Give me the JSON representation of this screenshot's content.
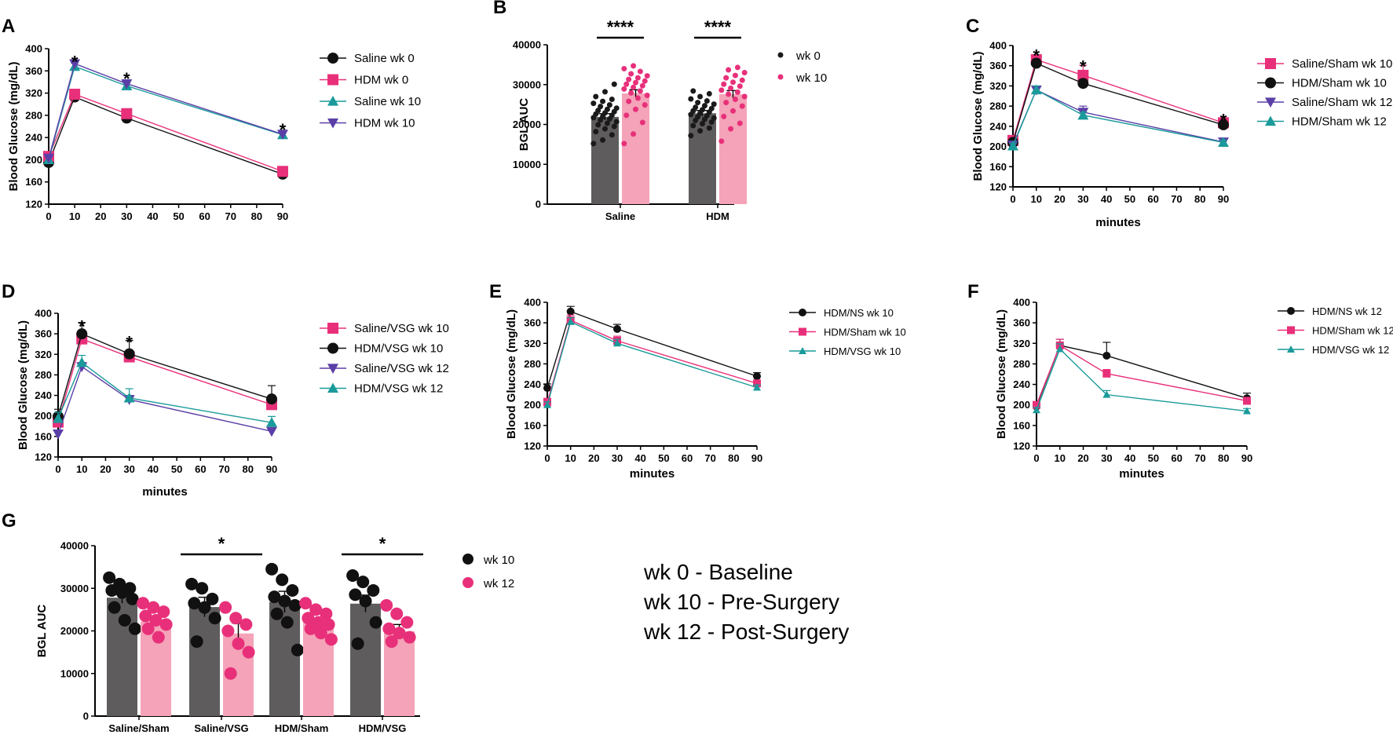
{
  "colors": {
    "black": "#111111",
    "pink": "#e8307a",
    "pinkBar": "#f4a3b8",
    "grayBar": "#5f5c5e",
    "teal": "#1a9a9a",
    "purple": "#5b3fa8",
    "blackDot": "#1a1a1a"
  },
  "notes": [
    "wk 0 - Baseline",
    "wk 10 - Pre-Surgery",
    "wk 12 - Post-Surgery"
  ],
  "chart_data": [
    {
      "id": "A",
      "panel_label": "A",
      "type": "line",
      "x": [
        0,
        10,
        30,
        90
      ],
      "xlim": [
        0,
        90
      ],
      "ylim": [
        120,
        400
      ],
      "xticks": [
        "0",
        "10",
        "20",
        "30",
        "40",
        "50",
        "60",
        "70",
        "80",
        "90"
      ],
      "yticks": [
        "120",
        "160",
        "200",
        "240",
        "280",
        "320",
        "360",
        "400"
      ],
      "ylabel": "Blood Glucose (mg/dL)",
      "xlabel": "",
      "stars": [
        {
          "x": 10,
          "y": 385,
          "label": "*"
        },
        {
          "x": 30,
          "y": 355,
          "label": "*"
        },
        {
          "x": 90,
          "y": 263,
          "label": "*"
        }
      ],
      "series": [
        {
          "name": "Saline wk 0",
          "color": "#111111",
          "marker": "circle",
          "values": [
            195,
            313,
            275,
            174
          ],
          "errors": [
            4,
            4,
            3,
            3
          ]
        },
        {
          "name": "HDM wk 0",
          "color": "#e8307a",
          "marker": "square",
          "values": [
            206,
            318,
            283,
            179
          ],
          "errors": [
            5,
            5,
            4,
            3
          ]
        },
        {
          "name": "Saline wk 10",
          "color": "#1a9a9a",
          "marker": "triangle-up",
          "values": [
            200,
            368,
            333,
            245
          ],
          "errors": [
            5,
            6,
            5,
            4
          ]
        },
        {
          "name": "HDM wk 10",
          "color": "#5b3fa8",
          "marker": "triangle-down",
          "values": [
            203,
            373,
            337,
            246
          ],
          "errors": [
            5,
            5,
            5,
            4
          ]
        }
      ]
    },
    {
      "id": "B",
      "panel_label": "B",
      "type": "bar",
      "categories": [
        "Saline",
        "HDM"
      ],
      "ylim": [
        0,
        40000
      ],
      "yticks": [
        "0",
        "10000",
        "20000",
        "30000",
        "40000"
      ],
      "ylabel": "BGL AUC",
      "sig": [
        {
          "category": "Saline",
          "label": "****"
        },
        {
          "category": "HDM",
          "label": "****"
        }
      ],
      "series": [
        {
          "name": "wk 0",
          "color": "#5f5c5e",
          "dot_color": "#1a1a1a",
          "values": [
            21900,
            22800
          ],
          "errors": [
            800,
            700
          ],
          "points": [
            [
              15200,
              16100,
              17400,
              18200,
              18900,
              19500,
              19900,
              20300,
              20700,
              21100,
              21400,
              21700,
              22000,
              22300,
              22600,
              22900,
              23200,
              23500,
              23800,
              24100,
              24500,
              24900,
              25300,
              25800,
              26300,
              27000,
              28200,
              30100
            ],
            [
              17200,
              18400,
              19100,
              19700,
              20200,
              20600,
              21000,
              21300,
              21600,
              21900,
              22200,
              22500,
              22800,
              23100,
              23400,
              23700,
              24000,
              24300,
              24700,
              25100,
              25500,
              25900,
              26400,
              27000,
              27700,
              28400
            ]
          ]
        },
        {
          "name": "wk 10",
          "color": "#f4a3b8",
          "dot_color": "#e8307a",
          "values": [
            27800,
            27600
          ],
          "errors": [
            900,
            900
          ],
          "points": [
            [
              15200,
              17600,
              20500,
              22300,
              23800,
              24900,
              25800,
              26600,
              27300,
              27900,
              28400,
              28900,
              29300,
              29700,
              30100,
              30500,
              30900,
              31300,
              31700,
              32200,
              32700,
              33300,
              34000,
              34700
            ],
            [
              15800,
              18900,
              20300,
              22000,
              23400,
              24600,
              25500,
              26300,
              27000,
              27600,
              28100,
              28600,
              29100,
              29600,
              30100,
              30600,
              31100,
              31700,
              32300,
              33000,
              33700,
              34300
            ]
          ]
        }
      ]
    },
    {
      "id": "C",
      "panel_label": "C",
      "type": "line",
      "x": [
        0,
        10,
        30,
        90
      ],
      "xlim": [
        0,
        90
      ],
      "ylim": [
        120,
        400
      ],
      "xticks": [
        "0",
        "10",
        "20",
        "30",
        "40",
        "50",
        "60",
        "70",
        "80",
        "90"
      ],
      "yticks": [
        "120",
        "160",
        "200",
        "240",
        "280",
        "320",
        "360",
        "400"
      ],
      "ylabel": "Blood Glucose (mg/dL)",
      "xlabel": "minutes",
      "stars": [
        {
          "x": 10,
          "y": 390,
          "label": "*"
        },
        {
          "x": 30,
          "y": 368,
          "label": "*"
        },
        {
          "x": 90,
          "y": 262,
          "label": "*"
        }
      ],
      "series": [
        {
          "name": "Saline/Sham wk 10",
          "color": "#e8307a",
          "marker": "square",
          "values": [
            212,
            372,
            341,
            247
          ],
          "errors": [
            6,
            10,
            20,
            6
          ]
        },
        {
          "name": "HDM/Sham wk 10",
          "color": "#111111",
          "marker": "circle",
          "values": [
            208,
            365,
            325,
            243
          ],
          "errors": [
            6,
            8,
            8,
            5
          ]
        },
        {
          "name": "Saline/Sham wk 12",
          "color": "#5b3fa8",
          "marker": "triangle-down",
          "values": [
            203,
            312,
            268,
            209
          ],
          "errors": [
            5,
            8,
            12,
            6
          ]
        },
        {
          "name": "HDM/Sham wk 12",
          "color": "#1a9a9a",
          "marker": "triangle-up",
          "values": [
            201,
            312,
            262,
            208
          ],
          "errors": [
            5,
            8,
            6,
            5
          ]
        }
      ]
    },
    {
      "id": "D",
      "panel_label": "D",
      "type": "line",
      "x": [
        0,
        10,
        30,
        90
      ],
      "xlim": [
        0,
        90
      ],
      "ylim": [
        120,
        400
      ],
      "xticks": [
        "0",
        "10",
        "20",
        "30",
        "40",
        "50",
        "60",
        "70",
        "80",
        "90"
      ],
      "yticks": [
        "120",
        "160",
        "200",
        "240",
        "280",
        "320",
        "360",
        "400"
      ],
      "ylabel": "Blood Glucose (mg/dL)",
      "xlabel": "minutes",
      "stars": [
        {
          "x": 10,
          "y": 384,
          "label": "*"
        },
        {
          "x": 30,
          "y": 353,
          "label": "*"
        }
      ],
      "series": [
        {
          "name": "Saline/VSG wk 10",
          "color": "#e8307a",
          "marker": "square",
          "values": [
            188,
            350,
            315,
            222
          ],
          "errors": [
            6,
            10,
            10,
            8
          ]
        },
        {
          "name": "HDM/VSG wk 10",
          "color": "#111111",
          "marker": "circle",
          "values": [
            199,
            360,
            321,
            233
          ],
          "errors": [
            14,
            22,
            26,
            26
          ]
        },
        {
          "name": "Saline/VSG wk 12",
          "color": "#5b3fa8",
          "marker": "triangle-down",
          "values": [
            165,
            296,
            232,
            170
          ],
          "errors": [
            6,
            8,
            8,
            6
          ]
        },
        {
          "name": "HDM/VSG wk 12",
          "color": "#1a9a9a",
          "marker": "triangle-up",
          "values": [
            195,
            304,
            235,
            187
          ],
          "errors": [
            12,
            14,
            18,
            12
          ]
        }
      ]
    },
    {
      "id": "E",
      "panel_label": "E",
      "type": "line",
      "x": [
        0,
        10,
        30,
        90
      ],
      "xlim": [
        0,
        90
      ],
      "ylim": [
        120,
        400
      ],
      "xticks": [
        "0",
        "10",
        "20",
        "30",
        "40",
        "50",
        "60",
        "70",
        "80",
        "90"
      ],
      "yticks": [
        "120",
        "160",
        "200",
        "240",
        "280",
        "320",
        "360",
        "400"
      ],
      "ylabel": "Blood Glucose (mg/dL)",
      "xlabel": "minutes",
      "stars": [],
      "series": [
        {
          "name": "HDM/NS wk 10",
          "color": "#111111",
          "marker": "circle",
          "values": [
            233,
            382,
            348,
            256
          ],
          "errors": [
            8,
            10,
            9,
            7
          ]
        },
        {
          "name": "HDM/Sham wk 10",
          "color": "#e8307a",
          "marker": "square",
          "values": [
            205,
            365,
            325,
            242
          ],
          "errors": [
            8,
            10,
            9,
            6
          ]
        },
        {
          "name": "HDM/VSG wk 10",
          "color": "#1a9a9a",
          "marker": "triangle-up",
          "values": [
            200,
            362,
            320,
            234
          ],
          "errors": [
            6,
            8,
            8,
            5
          ]
        }
      ]
    },
    {
      "id": "F",
      "panel_label": "F",
      "type": "line",
      "x": [
        0,
        10,
        30,
        90
      ],
      "xlim": [
        0,
        90
      ],
      "ylim": [
        120,
        400
      ],
      "xticks": [
        "0",
        "10",
        "20",
        "30",
        "40",
        "50",
        "60",
        "70",
        "80",
        "90"
      ],
      "yticks": [
        "120",
        "160",
        "200",
        "240",
        "280",
        "320",
        "360",
        "400"
      ],
      "ylabel": "Blood Glucose (mg/dL)",
      "xlabel": "minutes",
      "stars": [],
      "series": [
        {
          "name": "HDM/NS wk 12",
          "color": "#111111",
          "marker": "circle",
          "values": [
            197,
            316,
            296,
            213
          ],
          "errors": [
            6,
            12,
            26,
            10
          ]
        },
        {
          "name": "HDM/Sham wk 12",
          "color": "#e8307a",
          "marker": "square",
          "values": [
            200,
            316,
            261,
            208
          ],
          "errors": [
            6,
            12,
            8,
            6
          ]
        },
        {
          "name": "HDM/VSG wk 12",
          "color": "#1a9a9a",
          "marker": "triangle-up",
          "values": [
            190,
            309,
            220,
            188
          ],
          "errors": [
            5,
            10,
            8,
            5
          ]
        }
      ]
    },
    {
      "id": "G",
      "panel_label": "G",
      "type": "bar",
      "categories": [
        "Saline/Sham",
        "Saline/VSG",
        "HDM/Sham",
        "HDM/VSG"
      ],
      "ylim": [
        0,
        40000
      ],
      "yticks": [
        "0",
        "10000",
        "20000",
        "30000",
        "40000"
      ],
      "ylabel": "BGL AUC",
      "sig": [
        {
          "category": "Saline/VSG",
          "label": "*"
        },
        {
          "category": "HDM/VSG",
          "label": "*"
        }
      ],
      "series": [
        {
          "name": "wk 10",
          "color": "#5f5c5e",
          "dot_color": "#111111",
          "values": [
            27800,
            25600,
            26800,
            26400
          ],
          "errors": [
            1300,
            2300,
            2500,
            2000
          ],
          "points": [
            [
              32500,
              31000,
              30000,
              29500,
              29000,
              27500,
              25500,
              22500,
              20500
            ],
            [
              31000,
              30000,
              27500,
              26500,
              25500,
              23000,
              17500
            ],
            [
              34500,
              32000,
              29500,
              28000,
              27000,
              26000,
              24000,
              22000,
              15500
            ],
            [
              33000,
              31500,
              29500,
              28500,
              27000,
              22000,
              17000
            ]
          ]
        },
        {
          "name": "wk 12",
          "color": "#f4a3b8",
          "dot_color": "#e8307a",
          "values": [
            22200,
            19400,
            22100,
            19900
          ],
          "errors": [
            1200,
            2400,
            900,
            1600
          ],
          "points": [
            [
              26500,
              25500,
              24500,
              23500,
              22500,
              21500,
              20500,
              18500
            ],
            [
              25500,
              23000,
              21500,
              20000,
              17000,
              15000,
              10000
            ],
            [
              26500,
              25000,
              24000,
              23000,
              22000,
              21500,
              20500,
              19500,
              18000
            ],
            [
              26000,
              24000,
              22000,
              20500,
              19500,
              18500,
              17500
            ]
          ]
        }
      ]
    }
  ]
}
